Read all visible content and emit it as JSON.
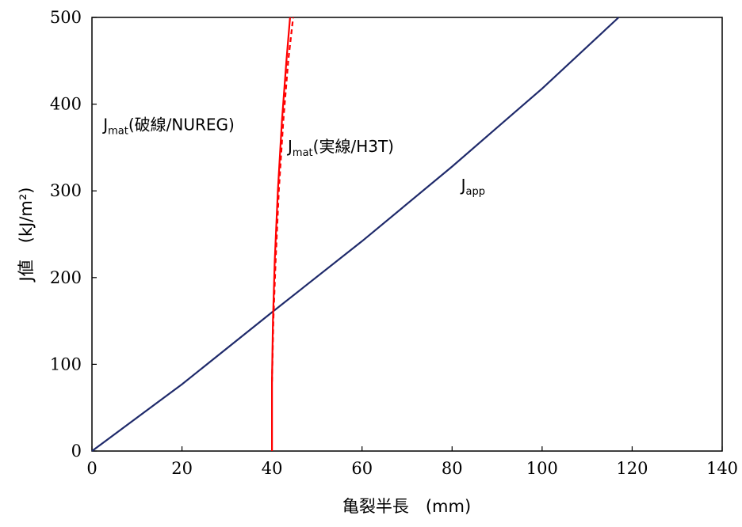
{
  "chart_data": {
    "type": "line",
    "xlabel": "亀裂半長　(mm)",
    "ylabel": "J値　(kJ/m²)",
    "xlim": [
      0,
      140
    ],
    "ylim": [
      0,
      500
    ],
    "xticks": [
      "0",
      "20",
      "40",
      "60",
      "80",
      "100",
      "120",
      "140"
    ],
    "yticks": [
      "0",
      "100",
      "200",
      "300",
      "400",
      "500"
    ],
    "grid": false,
    "series": [
      {
        "name": "Japp",
        "color": "#1f2a6b",
        "style": "solid",
        "x": [
          0,
          20,
          40,
          60,
          80,
          100,
          117
        ],
        "y": [
          0,
          77,
          160,
          242,
          328,
          418,
          500
        ]
      },
      {
        "name": "Jmat(実線/H3T)",
        "color": "#ff0000",
        "style": "solid",
        "x": [
          40,
          40,
          40.2,
          40.6,
          41.3,
          42.2,
          43.2,
          44.0
        ],
        "y": [
          0,
          80,
          150,
          220,
          300,
          380,
          450,
          500
        ]
      },
      {
        "name": "Jmat(破線/NUREG)",
        "color": "#ff0000",
        "style": "dashed",
        "x": [
          40,
          40.3,
          40.8,
          41.5,
          42.5,
          43.6,
          44.7
        ],
        "y": [
          80,
          150,
          220,
          300,
          380,
          450,
          500
        ]
      }
    ],
    "annotations": [
      {
        "main": "J",
        "sub": "mat",
        "rest": "(破線/NUREG)",
        "x": 2.5,
        "y": 370
      },
      {
        "main": "J",
        "sub": "mat",
        "rest": "(実線/H3T)",
        "x": 43.5,
        "y": 345
      },
      {
        "main": "J",
        "sub": "app",
        "rest": "",
        "x": 82,
        "y": 300
      }
    ]
  }
}
